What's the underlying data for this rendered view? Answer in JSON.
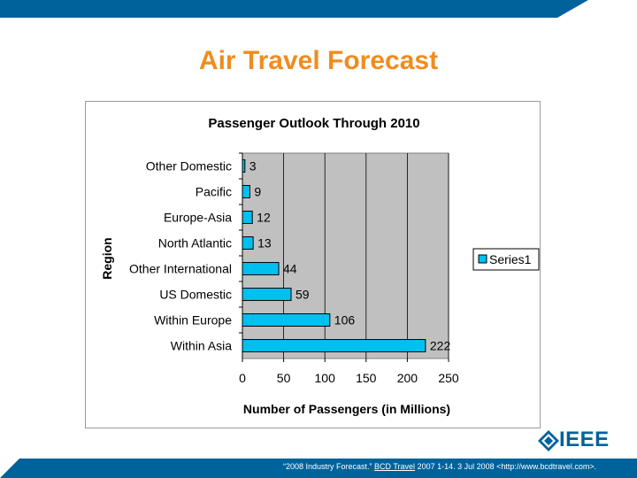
{
  "slide": {
    "title": "Air Travel Forecast",
    "logo_text": "IEEE",
    "citation_pre": "“2008 Industry Forecast.” ",
    "citation_link": "BCD Travel",
    "citation_post": " 2007 1-14. 3 Jul 2008 <http://www.bcdtravel.com>.",
    "colors": {
      "top_bar": "#00629b",
      "bottom_bar": "#00629b",
      "title": "#f08c1e",
      "bar_fill": "#00c0f0",
      "plot_bg": "#c0c0c0"
    }
  },
  "chart_data": {
    "type": "bar",
    "orientation": "horizontal",
    "title": "Passenger Outlook Through 2010",
    "xlabel": "Number of Passengers (in Millions)",
    "ylabel": "Region",
    "categories": [
      "Other Domestic",
      "Pacific",
      "Europe-Asia",
      "North Atlantic",
      "Other International",
      "US Domestic",
      "Within Europe",
      "Within Asia"
    ],
    "series": [
      {
        "name": "Series1",
        "values": [
          3,
          9,
          12,
          13,
          44,
          59,
          106,
          222
        ]
      }
    ],
    "xlim": [
      0,
      250
    ],
    "xticks": [
      "0",
      "50",
      "100",
      "150",
      "200",
      "250"
    ],
    "grid": true,
    "legend": "right",
    "data_labels": true
  }
}
